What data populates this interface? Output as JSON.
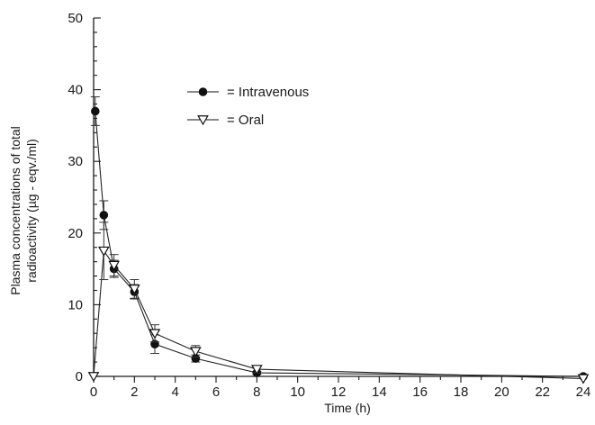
{
  "chart_data": {
    "type": "line",
    "title": "",
    "xlabel": "Time (h)",
    "ylabel": [
      "Plasma concentrations of total",
      "radioactivity (µg - eqv./ml)"
    ],
    "xlim": [
      0,
      24
    ],
    "ylim": [
      0,
      50
    ],
    "x_ticks": [
      0,
      2,
      4,
      6,
      8,
      10,
      12,
      14,
      16,
      18,
      20,
      22,
      24
    ],
    "y_ticks": [
      0,
      10,
      20,
      30,
      40,
      50
    ],
    "grid": false,
    "legend_position": "upper-center",
    "series": [
      {
        "name": "= Intravenous",
        "marker": "filled-circle",
        "legend_symbol": "—●—",
        "color": "#1a1a1a",
        "points": [
          {
            "x": 0.08,
            "y": 37.0,
            "err": 2.0
          },
          {
            "x": 0.5,
            "y": 22.5,
            "err": 2.0
          },
          {
            "x": 1.0,
            "y": 15.0,
            "err": 1.2
          },
          {
            "x": 2.0,
            "y": 11.8,
            "err": 1.0
          },
          {
            "x": 3.0,
            "y": 4.5,
            "err": 1.3
          },
          {
            "x": 5.0,
            "y": 2.5,
            "err": 0.5
          },
          {
            "x": 8.0,
            "y": 0.5,
            "err": 0.2
          },
          {
            "x": 24.0,
            "y": 0.0,
            "err": 0
          }
        ]
      },
      {
        "name": "= Oral",
        "marker": "open-triangle-down",
        "legend_symbol": "—▽—",
        "color": "#1a1a1a",
        "points": [
          {
            "x": 0.0,
            "y": 0.0,
            "err": 0
          },
          {
            "x": 0.5,
            "y": 17.5,
            "err": 4.0
          },
          {
            "x": 1.0,
            "y": 15.5,
            "err": 1.5
          },
          {
            "x": 2.0,
            "y": 12.2,
            "err": 1.3
          },
          {
            "x": 3.0,
            "y": 6.0,
            "err": 1.2
          },
          {
            "x": 5.0,
            "y": 3.5,
            "err": 0.8
          },
          {
            "x": 8.0,
            "y": 1.0,
            "err": 0.5
          },
          {
            "x": 24.0,
            "y": -0.3,
            "err": 0
          }
        ]
      }
    ]
  }
}
